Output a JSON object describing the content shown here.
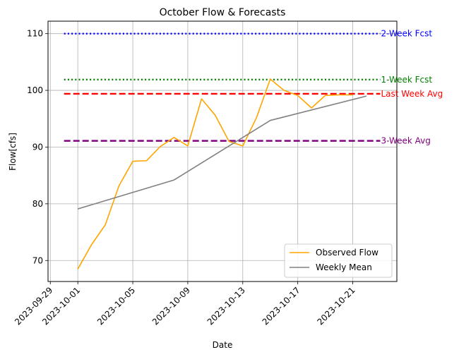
{
  "chart_data": {
    "type": "line",
    "title": "October Flow & Forecasts",
    "xlabel": "Date",
    "ylabel": "Flow[cfs]",
    "xlim": [
      "2023-09-28T20:00",
      "2023-10-24T05:00"
    ],
    "ylim": [
      66.3,
      112.2
    ],
    "x_ticks": [
      "2023-09-29",
      "2023-10-01",
      "2023-10-05",
      "2023-10-09",
      "2023-10-13",
      "2023-10-17",
      "2023-10-21"
    ],
    "y_ticks": [
      70,
      80,
      90,
      100,
      110
    ],
    "grid": true,
    "legend": "lower-right",
    "series": [
      {
        "name": "Observed Flow",
        "color": "#ffa500",
        "x": [
          "2023-10-01",
          "2023-10-02",
          "2023-10-03",
          "2023-10-04",
          "2023-10-05",
          "2023-10-06",
          "2023-10-07",
          "2023-10-08",
          "2023-10-09",
          "2023-10-10",
          "2023-10-11",
          "2023-10-12",
          "2023-10-13",
          "2023-10-14",
          "2023-10-15",
          "2023-10-16",
          "2023-10-17",
          "2023-10-18",
          "2023-10-19",
          "2023-10-20",
          "2023-10-21"
        ],
        "y": [
          68.5,
          72.8,
          76.3,
          83.2,
          87.5,
          87.6,
          90.1,
          91.7,
          90.2,
          98.5,
          95.6,
          91.0,
          90.2,
          95.2,
          102.0,
          100.0,
          99.1,
          96.9,
          99.1,
          99.2,
          99.2
        ]
      },
      {
        "name": "Weekly Mean",
        "color": "#808080",
        "x": [
          "2023-10-01",
          "2023-10-08",
          "2023-10-15",
          "2023-10-22"
        ],
        "y": [
          79.1,
          84.2,
          94.7,
          99.0
        ]
      }
    ],
    "reference_lines": [
      {
        "label": "2-Week Fcst",
        "value": 110.0,
        "color": "#0000ff",
        "style": "dotted"
      },
      {
        "label": "1-Week Fcst",
        "value": 101.9,
        "color": "#008000",
        "style": "dotted"
      },
      {
        "label": "Last Week Avg",
        "value": 99.4,
        "color": "#ff0000",
        "style": "dashed"
      },
      {
        "label": "3-Week Avg",
        "value": 91.1,
        "color": "#800080",
        "style": "dashed"
      }
    ],
    "reference_x_range": [
      "2023-09-30",
      "2023-10-23"
    ]
  }
}
